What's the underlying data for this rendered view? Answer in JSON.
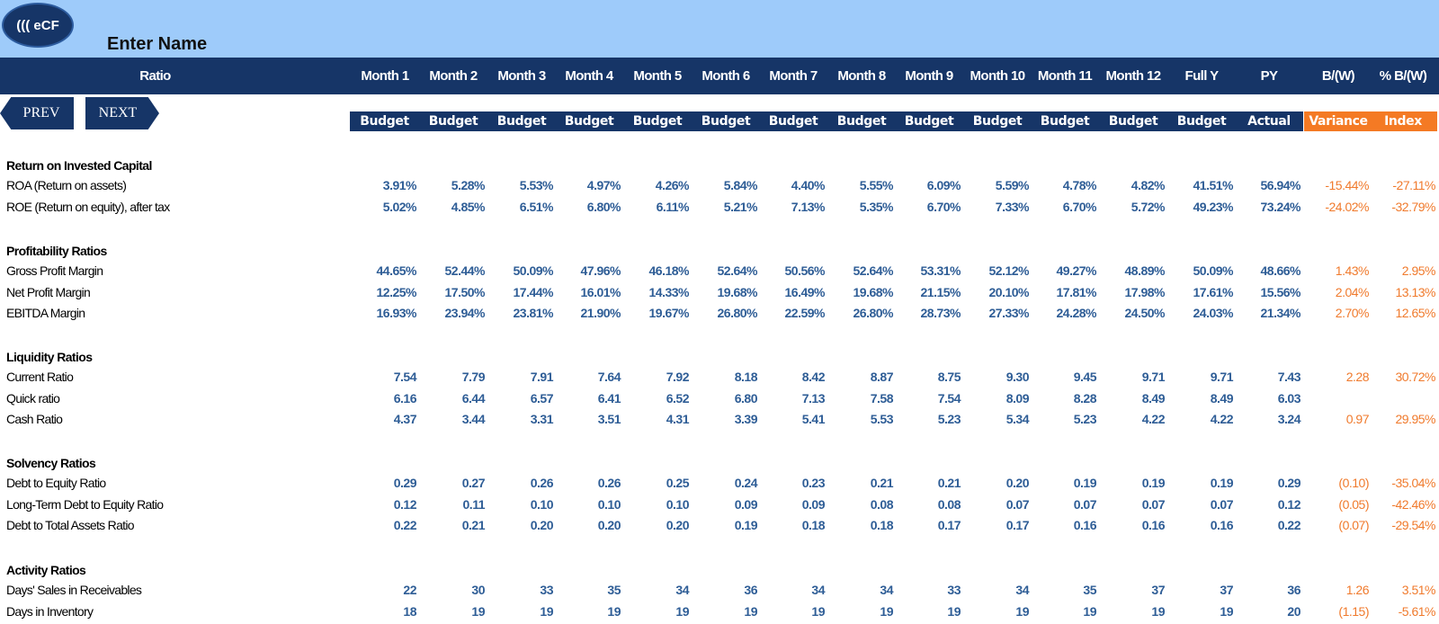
{
  "app": {
    "logo_text": "((( eCF",
    "name": "Enter Name"
  },
  "nav": {
    "prev": "PREV",
    "next": "NEXT"
  },
  "header": {
    "ratio_label": "Ratio",
    "columns": [
      "Month 1",
      "Month 2",
      "Month 3",
      "Month 4",
      "Month 5",
      "Month 6",
      "Month 7",
      "Month 8",
      "Month 9",
      "Month 10",
      "Month 11",
      "Month 12",
      "Full Y",
      "PY",
      "B/(W)",
      "% B/(W)"
    ],
    "sub": [
      "Budget",
      "Budget",
      "Budget",
      "Budget",
      "Budget",
      "Budget",
      "Budget",
      "Budget",
      "Budget",
      "Budget",
      "Budget",
      "Budget",
      "Budget",
      "Actual",
      "Variance",
      "Index"
    ]
  },
  "colors": {
    "navy": "#163567",
    "light_blue": "#9ecbfa",
    "orange": "#f47a24",
    "value_blue": "#2e5d96"
  },
  "sections": [
    {
      "title": "Return on Invested Capital",
      "rows": [
        {
          "label": "ROA (Return on assets)",
          "values": [
            "3.91%",
            "5.28%",
            "5.53%",
            "4.97%",
            "4.26%",
            "5.84%",
            "4.40%",
            "5.55%",
            "6.09%",
            "5.59%",
            "4.78%",
            "4.82%",
            "41.51%",
            "56.94%"
          ],
          "variance": "-15.44%",
          "index": "-27.11%"
        },
        {
          "label": "ROE (Return on equity), after tax",
          "values": [
            "5.02%",
            "4.85%",
            "6.51%",
            "6.80%",
            "6.11%",
            "5.21%",
            "7.13%",
            "5.35%",
            "6.70%",
            "7.33%",
            "6.70%",
            "5.72%",
            "49.23%",
            "73.24%"
          ],
          "variance": "-24.02%",
          "index": "-32.79%"
        }
      ]
    },
    {
      "title": "Profitability Ratios",
      "rows": [
        {
          "label": "Gross Profit Margin",
          "values": [
            "44.65%",
            "52.44%",
            "50.09%",
            "47.96%",
            "46.18%",
            "52.64%",
            "50.56%",
            "52.64%",
            "53.31%",
            "52.12%",
            "49.27%",
            "48.89%",
            "50.09%",
            "48.66%"
          ],
          "variance": "1.43%",
          "index": "2.95%"
        },
        {
          "label": "Net Profit Margin",
          "values": [
            "12.25%",
            "17.50%",
            "17.44%",
            "16.01%",
            "14.33%",
            "19.68%",
            "16.49%",
            "19.68%",
            "21.15%",
            "20.10%",
            "17.81%",
            "17.98%",
            "17.61%",
            "15.56%"
          ],
          "variance": "2.04%",
          "index": "13.13%"
        },
        {
          "label": "EBITDA Margin",
          "values": [
            "16.93%",
            "23.94%",
            "23.81%",
            "21.90%",
            "19.67%",
            "26.80%",
            "22.59%",
            "26.80%",
            "28.73%",
            "27.33%",
            "24.28%",
            "24.50%",
            "24.03%",
            "21.34%"
          ],
          "variance": "2.70%",
          "index": "12.65%"
        }
      ]
    },
    {
      "title": "Liquidity Ratios",
      "rows": [
        {
          "label": "Current Ratio",
          "values": [
            "7.54",
            "7.79",
            "7.91",
            "7.64",
            "7.92",
            "8.18",
            "8.42",
            "8.87",
            "8.75",
            "9.30",
            "9.45",
            "9.71",
            "9.71",
            "7.43"
          ],
          "variance": "2.28",
          "index": "30.72%"
        },
        {
          "label": "Quick ratio",
          "values": [
            "6.16",
            "6.44",
            "6.57",
            "6.41",
            "6.52",
            "6.80",
            "7.13",
            "7.58",
            "7.54",
            "8.09",
            "8.28",
            "8.49",
            "8.49",
            "6.03"
          ],
          "variance": "",
          "index": ""
        },
        {
          "label": "Cash Ratio",
          "values": [
            "4.37",
            "3.44",
            "3.31",
            "3.51",
            "4.31",
            "3.39",
            "5.41",
            "5.53",
            "5.23",
            "5.34",
            "5.23",
            "4.22",
            "4.22",
            "3.24"
          ],
          "variance": "0.97",
          "index": "29.95%"
        }
      ]
    },
    {
      "title": " Solvency Ratios",
      "rows": [
        {
          "label": "Debt to Equity Ratio",
          "values": [
            "0.29",
            "0.27",
            "0.26",
            "0.26",
            "0.25",
            "0.24",
            "0.23",
            "0.21",
            "0.21",
            "0.20",
            "0.19",
            "0.19",
            "0.19",
            "0.29"
          ],
          "variance": "(0.10)",
          "index": "-35.04%"
        },
        {
          "label": "Long-Term Debt to Equity Ratio",
          "values": [
            "0.12",
            "0.11",
            "0.10",
            "0.10",
            "0.10",
            "0.09",
            "0.09",
            "0.08",
            "0.08",
            "0.07",
            "0.07",
            "0.07",
            "0.07",
            "0.12"
          ],
          "variance": "(0.05)",
          "index": "-42.46%"
        },
        {
          "label": "Debt to Total Assets Ratio",
          "values": [
            "0.22",
            "0.21",
            "0.20",
            "0.20",
            "0.20",
            "0.19",
            "0.18",
            "0.18",
            "0.17",
            "0.17",
            "0.16",
            "0.16",
            "0.16",
            "0.22"
          ],
          "variance": "(0.07)",
          "index": "-29.54%"
        }
      ]
    },
    {
      "title": "Activity Ratios",
      "rows": [
        {
          "label": "Days' Sales in Receivables",
          "values": [
            "22",
            "30",
            "33",
            "35",
            "34",
            "36",
            "34",
            "34",
            "33",
            "34",
            "35",
            "37",
            "37",
            "36"
          ],
          "variance": "1.26",
          "index": "3.51%"
        },
        {
          "label": "Days in Inventory",
          "values": [
            "18",
            "19",
            "19",
            "19",
            "19",
            "19",
            "19",
            "19",
            "19",
            "19",
            "19",
            "19",
            "19",
            "20"
          ],
          "variance": "(1.15)",
          "index": "-5.61%"
        }
      ]
    }
  ]
}
